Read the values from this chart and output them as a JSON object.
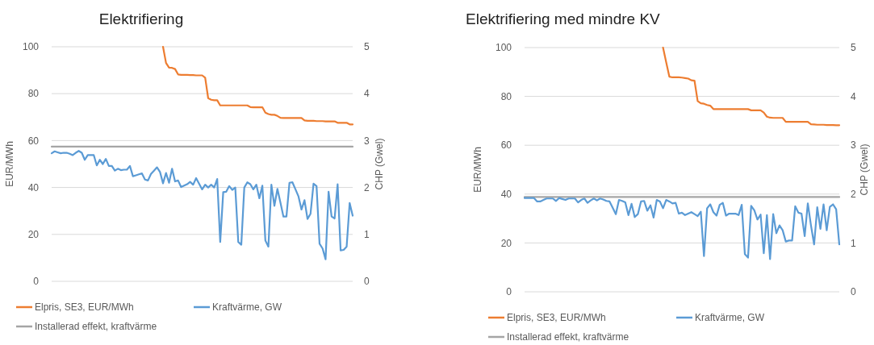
{
  "chart_data": [
    {
      "type": "line",
      "title": "Elektrifiering",
      "ylabel": "EUR/MWh",
      "y2label": "CHP (Gwel)",
      "ylim": [
        0,
        100
      ],
      "yticks": [
        0,
        20,
        40,
        60,
        80,
        100
      ],
      "y2lim": [
        0,
        5
      ],
      "y2ticks": [
        0,
        1,
        2,
        3,
        4,
        5
      ],
      "grid": "y",
      "legend": "bottom",
      "categories": [
        null,
        null,
        null,
        null,
        null,
        null,
        null,
        null,
        null,
        null,
        null,
        null,
        null,
        null,
        null,
        null,
        null,
        null,
        null,
        null,
        null,
        null,
        null,
        null,
        null,
        null,
        null,
        null,
        null,
        null,
        null,
        null,
        null,
        null,
        null,
        null,
        null,
        null,
        null,
        null,
        null,
        null,
        null,
        null,
        null,
        null,
        null,
        null,
        null,
        null,
        null,
        null,
        null,
        null,
        null,
        null,
        null,
        null,
        null,
        null,
        null,
        null,
        null,
        null,
        null,
        null,
        null,
        null,
        null,
        null,
        null,
        null,
        null,
        null,
        null,
        null,
        null,
        null,
        null,
        null,
        null,
        null,
        null,
        null,
        null,
        null,
        null,
        null,
        null,
        null,
        null,
        null,
        null,
        null,
        null,
        null,
        null,
        null,
        null,
        null,
        null
      ],
      "series": [
        {
          "name": "Elpris, SE3, EUR/MWh",
          "color": "#ed7d31",
          "axis": "y",
          "values": [
            null,
            null,
            null,
            null,
            null,
            null,
            null,
            null,
            null,
            null,
            null,
            null,
            null,
            null,
            null,
            null,
            null,
            null,
            null,
            null,
            null,
            null,
            null,
            null,
            null,
            null,
            null,
            null,
            null,
            null,
            null,
            null,
            null,
            null,
            null,
            null,
            null,
            100,
            93.1,
            91.1,
            91,
            90.5,
            88.2,
            88,
            88,
            88,
            87.9,
            87.9,
            87.8,
            87.8,
            87.8,
            86.8,
            78.1,
            77.4,
            77.2,
            77.2,
            75,
            75,
            75,
            75,
            75,
            75,
            75,
            75,
            75,
            75,
            74.3,
            74.2,
            74.2,
            74.2,
            74.2,
            71.9,
            71.3,
            71,
            71,
            70.5,
            69.7,
            69.6,
            69.6,
            69.6,
            69.6,
            69.6,
            69.6,
            69.6,
            68.6,
            68.4,
            68.4,
            68.4,
            68.3,
            68.3,
            68.3,
            68.2,
            68.2,
            68.2,
            68.2,
            67.6,
            67.6,
            67.6,
            67.6,
            66.9,
            66.9
          ]
        },
        {
          "name": "Kraftvärme, GW",
          "color": "#5b9bd5",
          "axis": "y2",
          "values": [
            2.73,
            2.77,
            2.75,
            2.73,
            2.74,
            2.74,
            2.72,
            2.69,
            2.74,
            2.78,
            2.74,
            2.59,
            2.69,
            2.69,
            2.69,
            2.47,
            2.59,
            2.5,
            2.61,
            2.46,
            2.46,
            2.36,
            2.4,
            2.37,
            2.38,
            2.38,
            2.46,
            2.24,
            2.26,
            2.28,
            2.3,
            2.17,
            2.15,
            2.29,
            2.36,
            2.43,
            2.33,
            2.09,
            2.31,
            2.1,
            2.4,
            2.13,
            2.15,
            2.01,
            2.04,
            2.07,
            2.12,
            2.06,
            2.2,
            2.08,
            1.96,
            2.06,
            2,
            2.06,
            2,
            2.18,
            0.84,
            1.9,
            1.91,
            2.03,
            1.95,
            2,
            0.84,
            0.78,
            2,
            2.11,
            2.07,
            1.96,
            2.06,
            1.77,
            2.04,
            0.87,
            0.74,
            2.06,
            1.61,
            1.97,
            1.68,
            1.38,
            1.38,
            2.1,
            2.11,
            1.96,
            1.81,
            1.53,
            1.73,
            1.33,
            1.44,
            2.08,
            2.03,
            0.8,
            0.7,
            0.47,
            1.91,
            1.38,
            1.34,
            2.07,
            0.66,
            0.67,
            0.74,
            1.67,
            1.4
          ]
        },
        {
          "name": "Installerad effekt, kraftvärme",
          "color": "#a5a5a5",
          "axis": "y2",
          "values": [
            2.87,
            2.87,
            2.87,
            2.87,
            2.87,
            2.87,
            2.87,
            2.87,
            2.87,
            2.87,
            2.87,
            2.87,
            2.87,
            2.87,
            2.87,
            2.87,
            2.87,
            2.87,
            2.87,
            2.87,
            2.87,
            2.87,
            2.87,
            2.87,
            2.87,
            2.87,
            2.87,
            2.87,
            2.87,
            2.87,
            2.87,
            2.87,
            2.87,
            2.87,
            2.87,
            2.87,
            2.87,
            2.87,
            2.87,
            2.87,
            2.87,
            2.87,
            2.87,
            2.87,
            2.87,
            2.87,
            2.87,
            2.87,
            2.87,
            2.87,
            2.87,
            2.87,
            2.87,
            2.87,
            2.87,
            2.87,
            2.87,
            2.87,
            2.87,
            2.87,
            2.87,
            2.87,
            2.87,
            2.87,
            2.87,
            2.87,
            2.87,
            2.87,
            2.87,
            2.87,
            2.87,
            2.87,
            2.87,
            2.87,
            2.87,
            2.87,
            2.87,
            2.87,
            2.87,
            2.87,
            2.87,
            2.87,
            2.87,
            2.87,
            2.87,
            2.87,
            2.87,
            2.87,
            2.87,
            2.87,
            2.87,
            2.87,
            2.87,
            2.87,
            2.87,
            2.87,
            2.87,
            2.87,
            2.87,
            2.87,
            2.87
          ]
        }
      ]
    },
    {
      "type": "line",
      "title": "Elektrifiering med mindre KV",
      "ylabel": "EUR/MWh",
      "y2label": "CHP (Gwel)",
      "ylim": [
        0,
        100
      ],
      "yticks": [
        0,
        20,
        40,
        60,
        80,
        100
      ],
      "y2lim": [
        0,
        5
      ],
      "y2ticks": [
        0,
        1,
        2,
        3,
        4,
        5
      ],
      "grid": "y",
      "legend": "bottom",
      "categories": [
        null,
        null,
        null,
        null,
        null,
        null,
        null,
        null,
        null,
        null,
        null,
        null,
        null,
        null,
        null,
        null,
        null,
        null,
        null,
        null,
        null,
        null,
        null,
        null,
        null,
        null,
        null,
        null,
        null,
        null,
        null,
        null,
        null,
        null,
        null,
        null,
        null,
        null,
        null,
        null,
        null,
        null,
        null,
        null,
        null,
        null,
        null,
        null,
        null,
        null,
        null,
        null,
        null,
        null,
        null,
        null,
        null,
        null,
        null,
        null,
        null,
        null,
        null,
        null,
        null,
        null,
        null,
        null,
        null,
        null,
        null,
        null,
        null,
        null,
        null,
        null,
        null,
        null,
        null,
        null,
        null,
        null,
        null,
        null,
        null,
        null,
        null,
        null,
        null,
        null,
        null,
        null,
        null,
        null,
        null,
        null,
        null,
        null,
        null,
        null,
        null
      ],
      "series": [
        {
          "name": "Elpris, SE3, EUR/MWh",
          "color": "#ed7d31",
          "axis": "y",
          "values": [
            null,
            null,
            null,
            null,
            null,
            null,
            null,
            null,
            null,
            null,
            null,
            null,
            null,
            null,
            null,
            null,
            null,
            null,
            null,
            null,
            null,
            null,
            null,
            null,
            null,
            null,
            null,
            null,
            null,
            null,
            null,
            null,
            null,
            null,
            null,
            null,
            null,
            null,
            null,
            null,
            null,
            null,
            null,
            null,
            100,
            94,
            88.1,
            87.8,
            87.8,
            87.8,
            87.7,
            87.5,
            87.3,
            86.6,
            86.4,
            78.1,
            77.2,
            77,
            76.5,
            76.2,
            74.8,
            74.8,
            74.8,
            74.8,
            74.8,
            74.8,
            74.8,
            74.8,
            74.8,
            74.8,
            74.8,
            74.8,
            74.3,
            74.3,
            74.3,
            74.3,
            73.4,
            71.7,
            71.3,
            71.2,
            71.2,
            71.2,
            71.2,
            69.6,
            69.6,
            69.6,
            69.6,
            69.6,
            69.6,
            69.6,
            69.6,
            68.6,
            68.5,
            68.4,
            68.4,
            68.4,
            68.3,
            68.3,
            68.3,
            68.2,
            68.2
          ]
        },
        {
          "name": "Kraftvärme, GW",
          "color": "#5b9bd5",
          "axis": "y2",
          "values": [
            1.92,
            1.92,
            1.92,
            1.92,
            1.85,
            1.85,
            1.88,
            1.91,
            1.91,
            1.91,
            1.86,
            1.92,
            1.9,
            1.88,
            1.91,
            1.91,
            1.91,
            1.83,
            1.88,
            1.91,
            1.82,
            1.87,
            1.91,
            1.87,
            1.91,
            1.89,
            1.86,
            1.85,
            1.72,
            1.59,
            1.88,
            1.86,
            1.83,
            1.57,
            1.8,
            1.53,
            1.59,
            1.85,
            1.86,
            1.66,
            1.77,
            1.52,
            1.88,
            1.85,
            1.71,
            1.88,
            1.85,
            1.81,
            1.82,
            1.6,
            1.62,
            1.57,
            1.6,
            1.63,
            1.59,
            1.55,
            1.64,
            0.73,
            1.71,
            1.79,
            1.63,
            1.56,
            1.78,
            1.82,
            1.56,
            1.6,
            1.6,
            1.6,
            1.57,
            1.78,
            0.77,
            0.7,
            1.76,
            1.67,
            1.48,
            1.58,
            0.79,
            1.57,
            0.67,
            1.59,
            1.2,
            1.36,
            1.26,
            1.03,
            1.05,
            1.05,
            1.75,
            1.62,
            1.6,
            1.14,
            1.81,
            1.36,
            0.97,
            1.73,
            1.29,
            1.79,
            1.26,
            1.74,
            1.79,
            1.69,
            0.97
          ]
        },
        {
          "name": "Installerad effekt, kraftvärme",
          "color": "#a5a5a5",
          "axis": "y2",
          "values": [
            1.94,
            1.94,
            1.94,
            1.94,
            1.94,
            1.94,
            1.94,
            1.94,
            1.94,
            1.94,
            1.94,
            1.94,
            1.94,
            1.94,
            1.94,
            1.94,
            1.94,
            1.94,
            1.94,
            1.94,
            1.94,
            1.94,
            1.94,
            1.94,
            1.94,
            1.94,
            1.94,
            1.94,
            1.94,
            1.94,
            1.94,
            1.94,
            1.94,
            1.94,
            1.94,
            1.94,
            1.94,
            1.94,
            1.94,
            1.94,
            1.94,
            1.94,
            1.94,
            1.94,
            1.94,
            1.94,
            1.94,
            1.94,
            1.94,
            1.94,
            1.94,
            1.94,
            1.94,
            1.94,
            1.94,
            1.94,
            1.94,
            1.94,
            1.94,
            1.94,
            1.94,
            1.94,
            1.94,
            1.94,
            1.94,
            1.94,
            1.94,
            1.94,
            1.94,
            1.94,
            1.94,
            1.94,
            1.94,
            1.94,
            1.94,
            1.94,
            1.94,
            1.94,
            1.94,
            1.94,
            1.94,
            1.94,
            1.94,
            1.94,
            1.94,
            1.94,
            1.94,
            1.94,
            1.94,
            1.94,
            1.94,
            1.94,
            1.94,
            1.94,
            1.94,
            1.94,
            1.94,
            1.94,
            1.94,
            1.94,
            1.94
          ]
        }
      ]
    }
  ]
}
